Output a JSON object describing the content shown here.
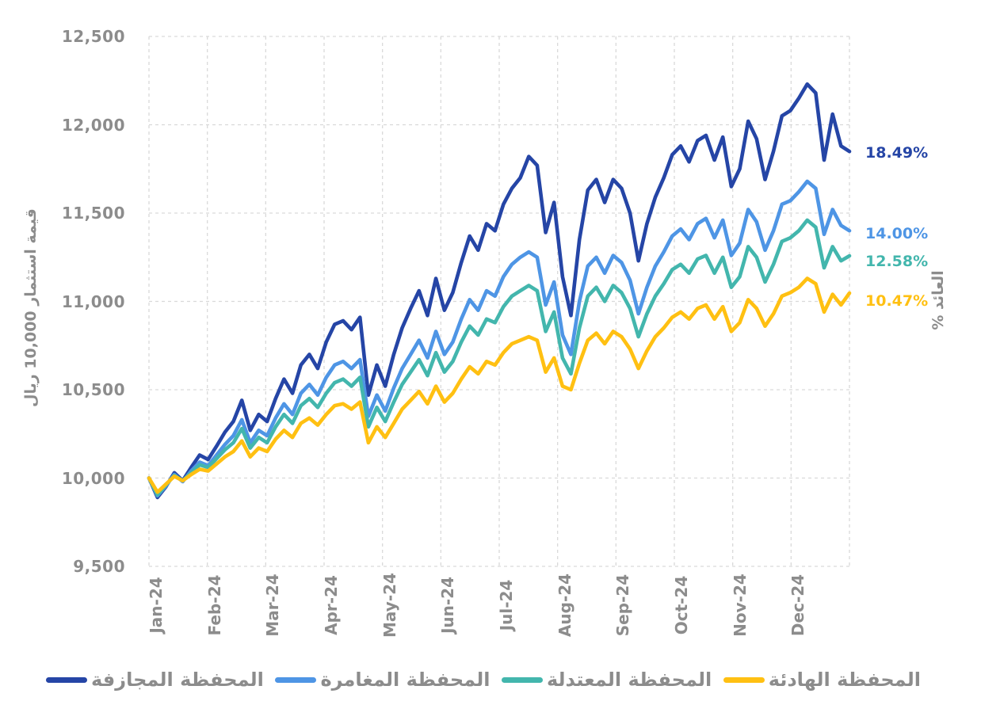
{
  "chart_data": {
    "type": "line",
    "ylabel": "قيمة استثمار 10,000 ريال",
    "right_axis_label": "% العائد",
    "grid": "dashed",
    "legend_position": "bottom",
    "ylim": [
      9500,
      12500
    ],
    "y_ticks": [
      9500,
      10000,
      10500,
      11000,
      11500,
      12000,
      12500
    ],
    "y_tick_labels": [
      "9,500",
      "10,000",
      "10,500",
      "11,000",
      "11,500",
      "12,000",
      "12,500"
    ],
    "x_labels": [
      "Jan-24",
      "Feb-24",
      "Mar-24",
      "Apr-24",
      "May-24",
      "Jun-24",
      "Jul-24",
      "Aug-24",
      "Sep-24",
      "Oct-24",
      "Nov-24",
      "Dec-24"
    ],
    "series": [
      {
        "name": "المحفظة المجازفة",
        "legend_label": "المحفظة المجازفة",
        "color": "#2545A6",
        "end_label": "18.49%",
        "return_pct": 18.49,
        "values": [
          10000,
          9890,
          9950,
          10030,
          9985,
          10060,
          10130,
          10105,
          10180,
          10260,
          10320,
          10440,
          10270,
          10360,
          10320,
          10450,
          10560,
          10480,
          10640,
          10700,
          10620,
          10770,
          10870,
          10890,
          10840,
          10910,
          10470,
          10640,
          10520,
          10700,
          10850,
          10960,
          11060,
          10920,
          11130,
          10950,
          11050,
          11220,
          11370,
          11290,
          11440,
          11400,
          11550,
          11640,
          11700,
          11820,
          11770,
          11390,
          11560,
          11140,
          10920,
          11350,
          11630,
          11690,
          11560,
          11690,
          11640,
          11500,
          11230,
          11440,
          11590,
          11700,
          11830,
          11880,
          11790,
          11910,
          11940,
          11800,
          11930,
          11650,
          11750,
          12020,
          11920,
          11690,
          11850,
          12050,
          12080,
          12150,
          12230,
          12180,
          11800,
          12060,
          11880,
          11849
        ]
      },
      {
        "name": "المحفظة المغامرة",
        "legend_label": "المحفظة المغامرة",
        "color": "#4E95E5",
        "end_label": "14.00%",
        "return_pct": 14.0,
        "values": [
          10000,
          9900,
          9955,
          10020,
          9980,
          10040,
          10090,
          10070,
          10130,
          10190,
          10240,
          10330,
          10200,
          10270,
          10240,
          10340,
          10420,
          10360,
          10480,
          10530,
          10470,
          10570,
          10640,
          10660,
          10620,
          10670,
          10350,
          10470,
          10380,
          10510,
          10620,
          10700,
          10780,
          10680,
          10830,
          10700,
          10770,
          10900,
          11010,
          10950,
          11060,
          11030,
          11140,
          11210,
          11250,
          11280,
          11250,
          10980,
          11110,
          10810,
          10700,
          11000,
          11200,
          11250,
          11160,
          11260,
          11220,
          11120,
          10930,
          11080,
          11200,
          11280,
          11370,
          11410,
          11350,
          11440,
          11470,
          11360,
          11460,
          11260,
          11330,
          11520,
          11450,
          11290,
          11400,
          11550,
          11570,
          11620,
          11680,
          11640,
          11380,
          11520,
          11430,
          11400
        ]
      },
      {
        "name": "المحفظة المعتدلة",
        "legend_label": "المحفظة المعتدلة",
        "color": "#43B6AD",
        "end_label": "12.58%",
        "return_pct": 12.58,
        "values": [
          10000,
          9905,
          9960,
          10015,
          9985,
          10030,
          10075,
          10060,
          10110,
          10160,
          10200,
          10280,
          10170,
          10230,
          10200,
          10290,
          10360,
          10310,
          10410,
          10450,
          10400,
          10480,
          10540,
          10560,
          10520,
          10570,
          10290,
          10400,
          10320,
          10430,
          10530,
          10600,
          10670,
          10580,
          10710,
          10600,
          10660,
          10770,
          10860,
          10810,
          10900,
          10880,
          10970,
          11030,
          11060,
          11090,
          11060,
          10830,
          10940,
          10680,
          10590,
          10850,
          11030,
          11080,
          11000,
          11090,
          11050,
          10960,
          10800,
          10930,
          11030,
          11100,
          11180,
          11210,
          11160,
          11240,
          11260,
          11160,
          11250,
          11080,
          11140,
          11310,
          11250,
          11110,
          11210,
          11340,
          11360,
          11400,
          11460,
          11420,
          11190,
          11310,
          11230,
          11258
        ]
      },
      {
        "name": "المحفظة الهادئة",
        "legend_label": "المحفظة الهادئة",
        "color": "#FFC012",
        "end_label": "10.47%",
        "return_pct": 10.47,
        "values": [
          10000,
          9920,
          9965,
          10010,
          9985,
          10020,
          10050,
          10040,
          10080,
          10120,
          10150,
          10210,
          10120,
          10170,
          10150,
          10220,
          10270,
          10230,
          10310,
          10340,
          10300,
          10360,
          10410,
          10420,
          10390,
          10430,
          10200,
          10290,
          10230,
          10310,
          10390,
          10440,
          10490,
          10420,
          10520,
          10430,
          10480,
          10560,
          10630,
          10590,
          10660,
          10640,
          10710,
          10760,
          10780,
          10800,
          10780,
          10600,
          10680,
          10520,
          10500,
          10650,
          10780,
          10820,
          10760,
          10830,
          10800,
          10730,
          10620,
          10720,
          10800,
          10850,
          10910,
          10940,
          10900,
          10960,
          10980,
          10900,
          10970,
          10830,
          10880,
          11010,
          10960,
          10860,
          10930,
          11030,
          11050,
          11080,
          11130,
          11100,
          10940,
          11040,
          10980,
          11047
        ]
      }
    ]
  }
}
